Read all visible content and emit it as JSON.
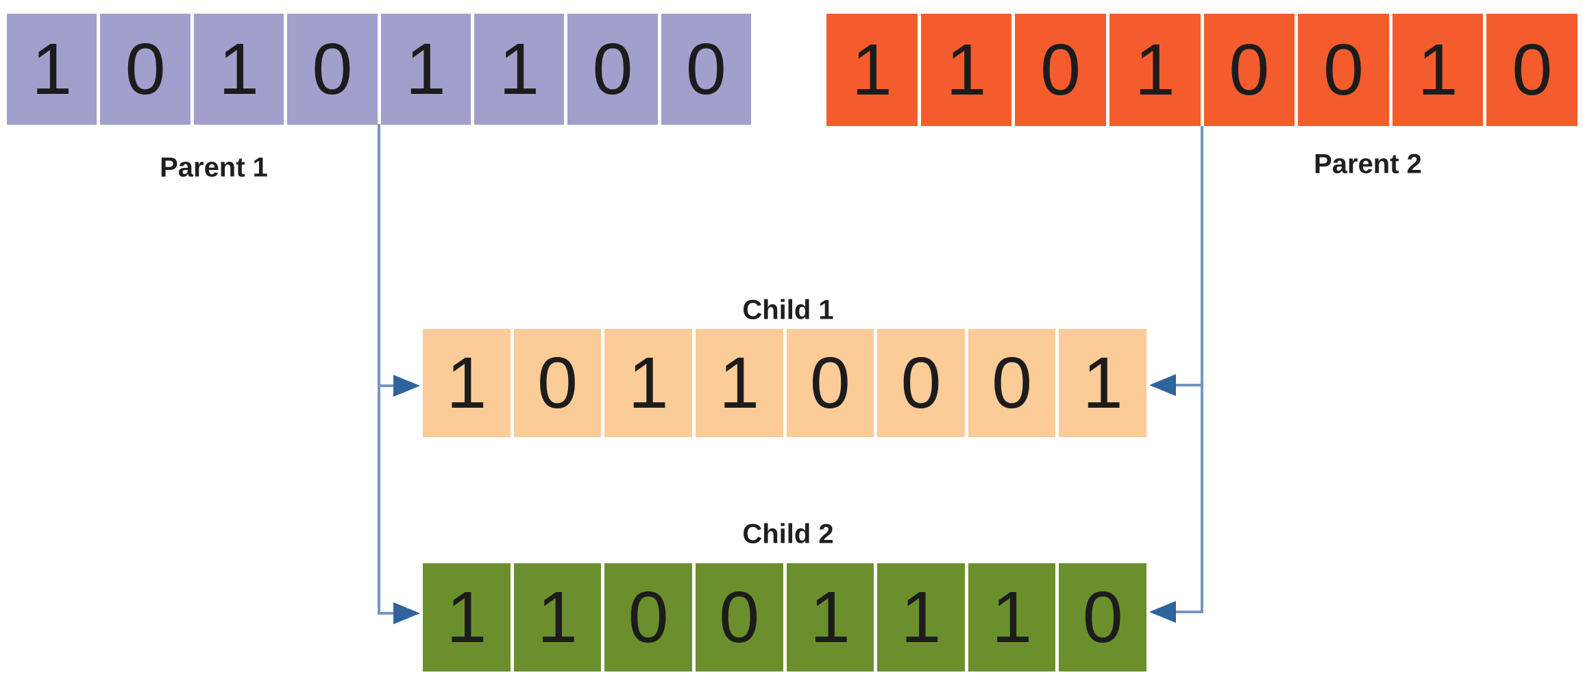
{
  "diagram": {
    "rows": {
      "parent1": {
        "label": "Parent 1",
        "bits": [
          "1",
          "0",
          "1",
          "0",
          "1",
          "1",
          "0",
          "0"
        ],
        "color": "#a19fcc"
      },
      "parent2": {
        "label": "Parent 2",
        "bits": [
          "1",
          "1",
          "0",
          "1",
          "0",
          "0",
          "1",
          "0"
        ],
        "color": "#f55c2d"
      },
      "child1": {
        "label": "Child 1",
        "bits": [
          "1",
          "0",
          "1",
          "1",
          "0",
          "0",
          "0",
          "1"
        ],
        "color": "#fbcb98"
      },
      "child2": {
        "label": "Child 2",
        "bits": [
          "1",
          "1",
          "0",
          "0",
          "1",
          "1",
          "1",
          "0"
        ],
        "color": "#6c8f2e"
      }
    },
    "connectors": {
      "line_color": "#7596bf",
      "arrow_color": "#2e639e"
    }
  }
}
